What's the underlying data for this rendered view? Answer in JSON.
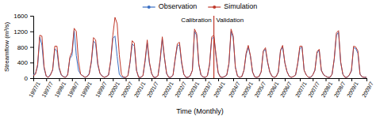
{
  "chart_data": {
    "type": "line",
    "xlabel": "Time (Monthly)",
    "ylabel": "Streamflow (m³/s)",
    "categories": [
      "1997/1",
      null,
      null,
      null,
      null,
      null,
      "1997/7",
      null,
      null,
      null,
      null,
      null,
      "1998/1",
      null,
      null,
      null,
      null,
      null,
      "1998/7",
      null,
      null,
      null,
      null,
      null,
      "1999/1",
      null,
      null,
      null,
      null,
      null,
      null,
      "1999/7",
      null,
      null,
      null,
      null,
      null,
      "2000/1",
      null,
      null,
      null,
      null,
      null,
      "2000/7",
      null,
      null,
      null,
      null,
      null,
      "2001/1",
      null,
      null,
      null,
      null,
      null,
      "2001/7",
      null,
      null,
      null,
      null,
      null,
      null,
      "2002/1",
      null,
      null,
      null,
      null,
      null,
      "2002/7",
      null,
      null,
      null,
      null,
      null,
      "2003/1",
      null,
      null,
      null,
      null,
      null,
      "2003/7",
      null,
      null,
      null,
      null,
      null,
      "2004/1",
      null,
      null,
      null,
      null,
      null,
      null,
      "2004/7",
      null,
      null,
      null,
      null,
      null,
      "2005/1",
      null,
      null,
      null,
      null,
      null,
      "2005/7",
      null,
      null,
      null,
      null,
      null,
      "2006/1",
      null,
      null,
      null,
      null,
      null,
      "2006/7",
      null,
      null,
      null,
      null,
      null,
      null,
      "2007/1",
      null,
      null,
      null,
      null,
      null,
      "2007/7",
      null,
      null,
      null,
      null,
      null,
      "2008/1",
      null,
      null,
      null,
      null,
      null,
      "2008/7",
      null,
      null,
      null,
      null,
      null,
      "2009/1",
      null,
      null,
      null,
      null,
      null,
      null,
      "2009/7"
    ],
    "series": [
      {
        "name": "Observation",
        "color": "#3A6FC4",
        "values": [
          80,
          120,
          300,
          1050,
          850,
          250,
          50,
          20,
          100,
          200,
          750,
          700,
          240,
          80,
          40,
          20,
          100,
          500,
          580,
          1220,
          580,
          200,
          100,
          60,
          20,
          40,
          120,
          400,
          950,
          880,
          340,
          120,
          60,
          20,
          40,
          80,
          420,
          1020,
          1080,
          560,
          100,
          30,
          20,
          20,
          60,
          400,
          880,
          820,
          200,
          20,
          20,
          60,
          420,
          900,
          380,
          130,
          20,
          20,
          60,
          440,
          1000,
          520,
          120,
          20,
          20,
          80,
          480,
          820,
          860,
          380,
          100,
          20,
          20,
          60,
          200,
          1200,
          1100,
          340,
          80,
          30,
          20,
          60,
          340,
          1000,
          1060,
          560,
          140,
          30,
          20,
          40,
          80,
          360,
          1200,
          1040,
          280,
          50,
          20,
          40,
          200,
          600,
          800,
          560,
          160,
          30,
          20,
          40,
          160,
          680,
          740,
          400,
          160,
          50,
          20,
          40,
          160,
          700,
          800,
          400,
          170,
          50,
          20,
          40,
          80,
          360,
          760,
          800,
          200,
          80,
          20,
          20,
          80,
          200,
          640,
          720,
          200,
          90,
          50,
          20,
          20,
          100,
          480,
          1100,
          1180,
          400,
          100,
          20,
          20,
          80,
          180,
          780,
          760,
          640,
          100,
          30,
          20,
          20
        ]
      },
      {
        "name": "Simulation",
        "color": "#C0392B",
        "values": [
          60,
          100,
          350,
          1100,
          1080,
          300,
          50,
          20,
          80,
          220,
          820,
          820,
          280,
          90,
          30,
          20,
          80,
          540,
          680,
          1280,
          1200,
          440,
          100,
          60,
          20,
          40,
          100,
          440,
          1040,
          980,
          380,
          120,
          50,
          20,
          40,
          80,
          460,
          1100,
          1560,
          1400,
          600,
          90,
          20,
          20,
          60,
          420,
          960,
          900,
          200,
          20,
          20,
          60,
          460,
          980,
          420,
          120,
          20,
          20,
          60,
          480,
          1060,
          540,
          120,
          20,
          20,
          80,
          500,
          880,
          920,
          420,
          100,
          20,
          20,
          60,
          200,
          1260,
          1140,
          360,
          80,
          30,
          20,
          60,
          360,
          1060,
          1100,
          600,
          140,
          30,
          20,
          40,
          80,
          380,
          1260,
          1080,
          280,
          50,
          20,
          40,
          200,
          640,
          840,
          580,
          160,
          30,
          20,
          40,
          160,
          700,
          780,
          420,
          160,
          50,
          20,
          40,
          160,
          720,
          840,
          400,
          170,
          50,
          20,
          40,
          80,
          380,
          820,
          820,
          200,
          80,
          20,
          20,
          80,
          200,
          680,
          740,
          200,
          90,
          50,
          20,
          20,
          100,
          500,
          1160,
          1220,
          420,
          100,
          20,
          20,
          80,
          200,
          820,
          800,
          700,
          100,
          30,
          20,
          20
        ]
      }
    ],
    "vlines": [
      {
        "x": 84,
        "color": "#C0392B"
      }
    ],
    "annotations": [
      {
        "text": "Calibration",
        "x": 84,
        "y": 1560
      },
      {
        "text": "Validation",
        "x": 84,
        "y": 1560
      }
    ],
    "ylim": [
      0,
      1600
    ],
    "yticks": [
      0,
      400,
      800,
      1200,
      1600
    ],
    "legend": "top"
  }
}
